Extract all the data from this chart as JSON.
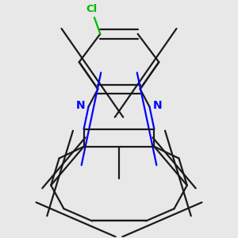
{
  "background_color": "#e8e8e8",
  "bond_color": "#1a1a1a",
  "nitrogen_color": "#0000ff",
  "chlorine_color": "#00bb00",
  "bond_width": 1.6,
  "figsize": [
    3.0,
    3.0
  ],
  "dpi": 100,
  "xlim": [
    0.0,
    1.0
  ],
  "ylim": [
    0.0,
    1.0
  ]
}
